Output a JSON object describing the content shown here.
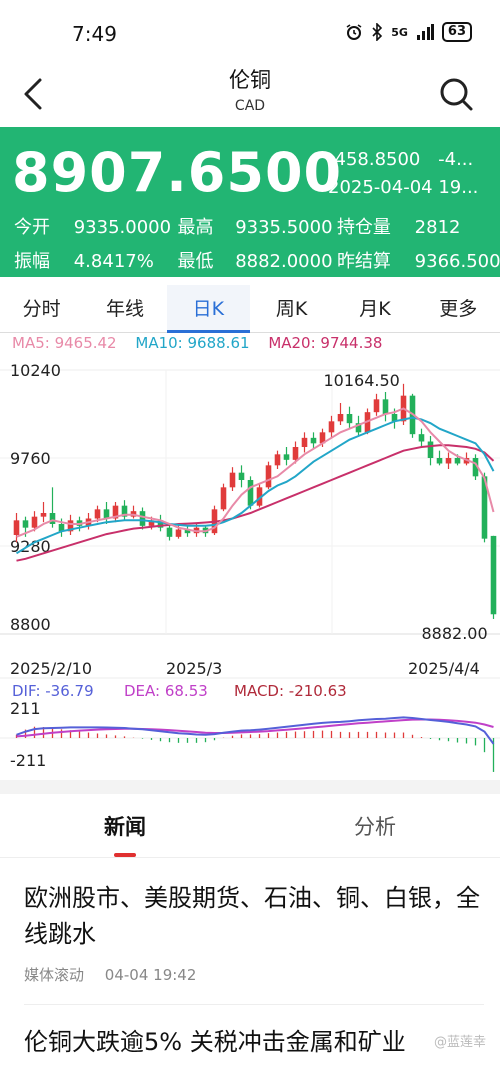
{
  "status_bar": {
    "time": "7:49",
    "network": "5G",
    "battery": "63"
  },
  "nav": {
    "title": "伦铜",
    "subtitle": "CAD"
  },
  "quote": {
    "price": "8907.6500",
    "change": "-458.8500",
    "change_pct": "-4...",
    "datetime": "2025-04-04 19...",
    "open_label": "今开",
    "open": "9335.0000",
    "high_label": "最高",
    "high": "9335.5000",
    "oi_label": "持仓量",
    "oi": "2812",
    "amp_label": "振幅",
    "amp": "4.8417%",
    "low_label": "最低",
    "low": "8882.0000",
    "settle_label": "昨结算",
    "settle": "9366.5000",
    "bg_color": "#22b573"
  },
  "tabs": [
    {
      "label": "分时",
      "active": false
    },
    {
      "label": "年线",
      "active": false
    },
    {
      "label": "日K",
      "active": true
    },
    {
      "label": "周K",
      "active": false
    },
    {
      "label": "月K",
      "active": false
    },
    {
      "label": "更多",
      "active": false
    }
  ],
  "chart_data": {
    "type": "candlestick",
    "ma_legend": {
      "ma5": "MA5: 9465.42",
      "ma10": "MA10: 9688.61",
      "ma20": "MA20: 9744.38"
    },
    "y_ticks": [
      "10240",
      "9760",
      "9280",
      "8800"
    ],
    "ylim": [
      8800,
      10240
    ],
    "x_ticks": [
      "2025/2/10",
      "2025/3",
      "2025/4/4"
    ],
    "max_label": "10164.50",
    "min_label": "8882.00",
    "up_color": "#e03b3b",
    "down_color": "#22b05a",
    "candles": [
      [
        9340,
        9420,
        9300,
        9460
      ],
      [
        9420,
        9380,
        9330,
        9440
      ],
      [
        9380,
        9440,
        9360,
        9470
      ],
      [
        9440,
        9460,
        9410,
        9520
      ],
      [
        9460,
        9400,
        9380,
        9600
      ],
      [
        9400,
        9360,
        9330,
        9430
      ],
      [
        9360,
        9420,
        9340,
        9450
      ],
      [
        9420,
        9390,
        9360,
        9440
      ],
      [
        9390,
        9430,
        9370,
        9460
      ],
      [
        9430,
        9480,
        9410,
        9500
      ],
      [
        9480,
        9430,
        9400,
        9520
      ],
      [
        9430,
        9500,
        9410,
        9520
      ],
      [
        9500,
        9440,
        9420,
        9530
      ],
      [
        9440,
        9470,
        9430,
        9500
      ],
      [
        9470,
        9390,
        9370,
        9490
      ],
      [
        9390,
        9420,
        9370,
        9440
      ],
      [
        9420,
        9380,
        9360,
        9450
      ],
      [
        9380,
        9330,
        9310,
        9400
      ],
      [
        9330,
        9370,
        9320,
        9400
      ],
      [
        9370,
        9350,
        9330,
        9390
      ],
      [
        9350,
        9380,
        9330,
        9400
      ],
      [
        9380,
        9350,
        9330,
        9390
      ],
      [
        9350,
        9480,
        9340,
        9500
      ],
      [
        9480,
        9600,
        9470,
        9620
      ],
      [
        9600,
        9680,
        9580,
        9710
      ],
      [
        9680,
        9640,
        9600,
        9720
      ],
      [
        9640,
        9500,
        9480,
        9660
      ],
      [
        9500,
        9600,
        9490,
        9620
      ],
      [
        9600,
        9720,
        9590,
        9740
      ],
      [
        9720,
        9780,
        9700,
        9800
      ],
      [
        9780,
        9750,
        9720,
        9820
      ],
      [
        9750,
        9820,
        9730,
        9850
      ],
      [
        9820,
        9870,
        9790,
        9900
      ],
      [
        9870,
        9840,
        9810,
        9900
      ],
      [
        9840,
        9900,
        9820,
        9920
      ],
      [
        9900,
        9960,
        9870,
        9990
      ],
      [
        9960,
        10000,
        9940,
        10060
      ],
      [
        10000,
        9950,
        9920,
        10040
      ],
      [
        9950,
        9900,
        9880,
        9990
      ],
      [
        9900,
        10010,
        9890,
        10030
      ],
      [
        10010,
        10080,
        9990,
        10110
      ],
      [
        10080,
        10000,
        9960,
        10120
      ],
      [
        10000,
        9960,
        9920,
        10030
      ],
      [
        9960,
        10100,
        9940,
        10164.5
      ],
      [
        10100,
        9890,
        9870,
        10110
      ],
      [
        9890,
        9850,
        9820,
        9920
      ],
      [
        9850,
        9760,
        9720,
        9880
      ],
      [
        9760,
        9730,
        9720,
        9800
      ],
      [
        9730,
        9760,
        9700,
        9790
      ],
      [
        9760,
        9730,
        9720,
        9780
      ],
      [
        9730,
        9760,
        9720,
        9790
      ],
      [
        9760,
        9660,
        9640,
        9780
      ],
      [
        9660,
        9320,
        9300,
        9680
      ],
      [
        9335,
        8907.65,
        8882,
        9335.5
      ]
    ],
    "ma5": [
      9330,
      9350,
      9370,
      9400,
      9420,
      9410,
      9400,
      9400,
      9410,
      9420,
      9430,
      9440,
      9450,
      9450,
      9440,
      9430,
      9420,
      9400,
      9380,
      9370,
      9360,
      9360,
      9380,
      9430,
      9500,
      9560,
      9600,
      9620,
      9640,
      9660,
      9700,
      9740,
      9780,
      9810,
      9840,
      9870,
      9900,
      9920,
      9940,
      9960,
      9980,
      10000,
      10010,
      10030,
      10000,
      9960,
      9900,
      9850,
      9800,
      9770,
      9750,
      9730,
      9650,
      9465.42
    ],
    "ma10": [
      9240,
      9270,
      9300,
      9320,
      9340,
      9360,
      9370,
      9380,
      9390,
      9400,
      9410,
      9415,
      9420,
      9420,
      9420,
      9415,
      9410,
      9400,
      9395,
      9390,
      9390,
      9390,
      9395,
      9410,
      9430,
      9460,
      9500,
      9540,
      9580,
      9610,
      9630,
      9660,
      9700,
      9740,
      9770,
      9800,
      9830,
      9860,
      9880,
      9900,
      9920,
      9940,
      9960,
      9970,
      9980,
      9970,
      9950,
      9920,
      9900,
      9880,
      9860,
      9840,
      9780,
      9688.61
    ],
    "ma20": [
      9200,
      9210,
      9225,
      9240,
      9255,
      9270,
      9285,
      9300,
      9315,
      9330,
      9345,
      9355,
      9365,
      9375,
      9380,
      9385,
      9390,
      9395,
      9400,
      9402,
      9405,
      9408,
      9412,
      9420,
      9430,
      9445,
      9460,
      9480,
      9500,
      9520,
      9540,
      9560,
      9580,
      9600,
      9620,
      9640,
      9660,
      9680,
      9700,
      9720,
      9740,
      9760,
      9780,
      9800,
      9810,
      9820,
      9825,
      9830,
      9830,
      9825,
      9820,
      9810,
      9790,
      9744.38
    ],
    "macd_legend": {
      "dif": "DIF: -36.79",
      "dea": "DEA: 68.53",
      "macd": "MACD: -210.63"
    },
    "macd_ticks": [
      "211",
      "-211"
    ],
    "macd_ylim": [
      -211,
      211
    ],
    "dif": [
      20,
      40,
      55,
      60,
      62,
      64,
      66,
      66,
      66,
      66,
      65,
      64,
      62,
      58,
      54,
      48,
      42,
      36,
      30,
      26,
      22,
      20,
      24,
      32,
      40,
      46,
      48,
      52,
      58,
      64,
      70,
      76,
      82,
      88,
      94,
      98,
      100,
      104,
      110,
      114,
      118,
      120,
      124,
      128,
      124,
      118,
      112,
      106,
      100,
      92,
      84,
      72,
      40,
      -36.79
    ],
    "dea": [
      10,
      14,
      20,
      26,
      32,
      37,
      42,
      46,
      49,
      52,
      54,
      56,
      57,
      57,
      56,
      54,
      52,
      49,
      45,
      41,
      37,
      33,
      31,
      31,
      33,
      35,
      37,
      40,
      43,
      47,
      51,
      56,
      61,
      66,
      71,
      76,
      81,
      86,
      91,
      95,
      99,
      103,
      107,
      111,
      114,
      115,
      115,
      113,
      110,
      106,
      101,
      95,
      84,
      68.53
    ],
    "macd": [
      20,
      52,
      70,
      68,
      60,
      54,
      48,
      40,
      34,
      28,
      22,
      16,
      10,
      2,
      -4,
      -12,
      -20,
      -26,
      -30,
      -30,
      -30,
      -26,
      -14,
      2,
      14,
      22,
      22,
      24,
      30,
      34,
      38,
      40,
      42,
      44,
      46,
      44,
      38,
      36,
      38,
      38,
      38,
      34,
      34,
      34,
      20,
      6,
      -6,
      -14,
      -20,
      -28,
      -34,
      -46,
      -88,
      -210.63
    ]
  },
  "news_tabs": [
    {
      "label": "新闻",
      "active": true
    },
    {
      "label": "分析",
      "active": false
    }
  ],
  "news": [
    {
      "title": "欧洲股市、美股期货、石油、铜、白银，全线跳水",
      "source": "媒体滚动",
      "time": "04-04 19:42"
    },
    {
      "title": "伦铜大跌逾5% 关税冲击金属和矿业"
    }
  ],
  "watermark": "@蓝莲幸"
}
